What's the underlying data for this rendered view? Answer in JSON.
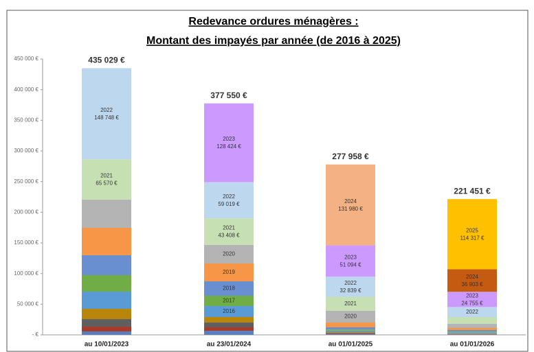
{
  "chart_data": {
    "type": "stacked_bar",
    "title": "Redevance ordures ménagères :",
    "subtitle": "Montant des impayés par année (de 2016 à 2025)",
    "categories": [
      "au 10/01/2023",
      "au 23/01/2024",
      "au 01/01/2025",
      "au 01/01/2026"
    ],
    "totals": [
      435029,
      377550,
      277958,
      221451
    ],
    "total_labels": [
      "435 029 €",
      "377 550 €",
      "277 958 €",
      "221 451 €"
    ],
    "ylim": [
      0,
      450000
    ],
    "yticks": [
      {
        "value": 0,
        "label": "- €"
      },
      {
        "value": 50000,
        "label": "50 000 €"
      },
      {
        "value": 100000,
        "label": "100 000 €"
      },
      {
        "value": 150000,
        "label": "150 000 €"
      },
      {
        "value": 200000,
        "label": "200 000 €"
      },
      {
        "value": 250000,
        "label": "250 000 €"
      },
      {
        "value": 300000,
        "label": "300 000 €"
      },
      {
        "value": 350000,
        "label": "350 000 €"
      },
      {
        "value": 400000,
        "label": "400 000 €"
      },
      {
        "value": 450000,
        "label": "450 000 €"
      }
    ],
    "series": [
      {
        "color": "#5b7fbd",
        "values": [
          5600,
          6700,
          1500,
          800
        ],
        "labels": [
          null,
          null,
          null,
          null
        ],
        "value_labels": [
          null,
          null,
          null,
          null
        ]
      },
      {
        "color": "#a83a2a",
        "values": [
          7800,
          5600,
          1000,
          600
        ],
        "labels": [
          null,
          null,
          null,
          null
        ],
        "value_labels": [
          null,
          null,
          null,
          null
        ]
      },
      {
        "color": "#5f5f5f",
        "values": [
          12300,
          7800,
          1000,
          600
        ],
        "labels": [
          null,
          null,
          null,
          null
        ],
        "value_labels": [
          null,
          null,
          null,
          null
        ]
      },
      {
        "color": "#b8860b",
        "values": [
          16800,
          9000,
          1500,
          500
        ],
        "labels": [
          null,
          null,
          null,
          null
        ],
        "value_labels": [
          null,
          null,
          null,
          null
        ]
      },
      {
        "color": "#5b9bd5",
        "values": [
          28000,
          17900,
          2000,
          1300
        ],
        "labels": [
          null,
          "2016",
          null,
          null
        ],
        "value_labels": [
          null,
          null,
          null,
          null
        ]
      },
      {
        "color": "#70ad47",
        "values": [
          26900,
          16800,
          1800,
          1500
        ],
        "labels": [
          null,
          "2017",
          null,
          null
        ],
        "value_labels": [
          null,
          null,
          null,
          null
        ]
      },
      {
        "color": "#6a8fd0",
        "values": [
          32500,
          23500,
          3500,
          2500
        ],
        "labels": [
          null,
          "2018",
          null,
          null
        ],
        "value_labels": [
          null,
          null,
          null,
          null
        ]
      },
      {
        "color": "#f79646",
        "values": [
          44700,
          29100,
          7800,
          3400
        ],
        "labels": [
          null,
          "2019",
          null,
          null
        ],
        "value_labels": [
          null,
          null,
          null,
          null
        ]
      },
      {
        "color": "#b4b4b4",
        "values": [
          46100,
          30300,
          19100,
          6700
        ],
        "labels": [
          null,
          "2020",
          "2020",
          null
        ],
        "value_labels": [
          null,
          null,
          null,
          null
        ]
      },
      {
        "color": "#c6e0b4",
        "values": [
          65570,
          43408,
          22845,
          11200
        ],
        "labels": [
          "2021",
          "2021",
          "2021",
          null
        ],
        "value_labels": [
          "65 570 €",
          "43 408 €",
          null,
          null
        ]
      },
      {
        "color": "#bdd7ee",
        "values": [
          148748,
          59019,
          32839,
          16376
        ],
        "labels": [
          "2022",
          "2022",
          "2022",
          "2022"
        ],
        "value_labels": [
          "148 748 €",
          "59 019 €",
          "32 839 €",
          null
        ]
      },
      {
        "color": "#cc99ff",
        "values": [
          null,
          128424,
          51094,
          24755
        ],
        "labels": [
          null,
          "2023",
          "2023",
          "2023"
        ],
        "value_labels": [
          null,
          "128 424 €",
          "51 094 €",
          "24 755 €"
        ]
      },
      {
        "colors": [
          null,
          null,
          "#f4b183",
          "#c55a11"
        ],
        "values": [
          null,
          null,
          131980,
          36903
        ],
        "labels": [
          null,
          null,
          "2024",
          "2024"
        ],
        "value_labels": [
          null,
          null,
          "131 980 €",
          "36 903 €"
        ]
      },
      {
        "color": "#ffc000",
        "values": [
          null,
          null,
          null,
          114317
        ],
        "labels": [
          null,
          null,
          null,
          "2025"
        ],
        "value_labels": [
          null,
          null,
          null,
          "114 317 €"
        ]
      }
    ]
  }
}
